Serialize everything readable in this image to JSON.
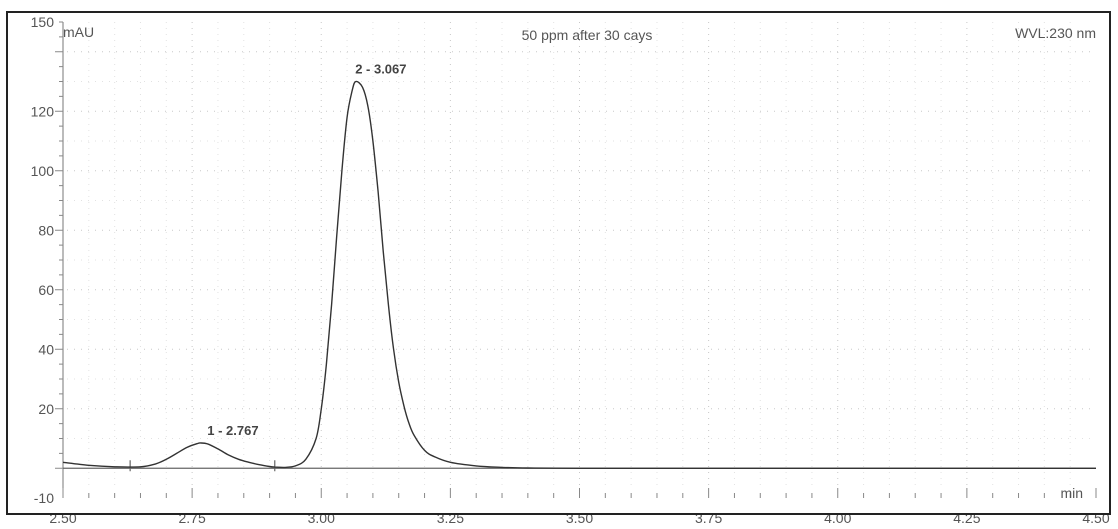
{
  "chart_data": {
    "type": "line",
    "title": "50 ppm after 30 cays",
    "detector": "WVL:230 nm",
    "ylabel": "mAU",
    "xlabel": "min",
    "xlim": [
      2.5,
      4.5
    ],
    "ylim": [
      -10,
      150
    ],
    "xticks": [
      2.5,
      2.75,
      3.0,
      3.25,
      3.5,
      3.75,
      4.0,
      4.25,
      4.5
    ],
    "xtick_labels": [
      "2.50",
      "2.75",
      "3.00",
      "3.25",
      "3.50",
      "3.75",
      "4.00",
      "4.25",
      "4.50"
    ],
    "yticks": [
      -10,
      20,
      40,
      60,
      80,
      100,
      120,
      150
    ],
    "ytick_labels": [
      "-10",
      "20",
      "40",
      "60",
      "80",
      "100",
      "120",
      "150"
    ],
    "grid": true,
    "peaks": [
      {
        "label": "1 - 2.767",
        "retention_time": 2.767,
        "height": 8.5
      },
      {
        "label": "2 - 3.067",
        "retention_time": 3.067,
        "height": 130
      }
    ],
    "baseline_markers": [
      2.63,
      2.91
    ],
    "series": [
      {
        "x": [
          2.5,
          2.55,
          2.6,
          2.65,
          2.68,
          2.7,
          2.72,
          2.74,
          2.76,
          2.767,
          2.78,
          2.8,
          2.82,
          2.84,
          2.86,
          2.88,
          2.9,
          2.91,
          2.93,
          2.95,
          2.97,
          2.99,
          3.0,
          3.01,
          3.02,
          3.03,
          3.04,
          3.05,
          3.06,
          3.067,
          3.08,
          3.09,
          3.1,
          3.11,
          3.12,
          3.13,
          3.14,
          3.15,
          3.16,
          3.17,
          3.18,
          3.2,
          3.22,
          3.25,
          3.3,
          3.35,
          3.4,
          3.5,
          3.75,
          4.0,
          4.25,
          4.5
        ],
        "y": [
          2,
          1,
          0.5,
          0.5,
          1.5,
          3,
          5,
          7,
          8.3,
          8.5,
          8.2,
          6.5,
          4.5,
          3,
          2,
          1.2,
          0.6,
          0.4,
          0.3,
          0.8,
          3,
          10,
          20,
          35,
          55,
          78,
          100,
          118,
          127,
          130,
          128,
          122,
          110,
          93,
          73,
          55,
          40,
          29,
          21,
          15,
          11,
          6,
          3.8,
          2,
          0.8,
          0.3,
          0.1,
          0,
          0,
          0,
          0,
          0
        ]
      }
    ]
  }
}
